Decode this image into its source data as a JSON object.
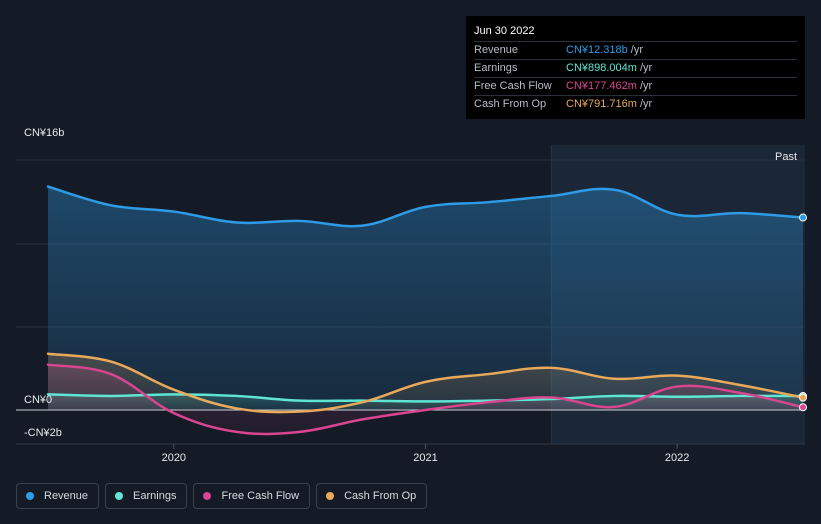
{
  "chart_data": {
    "type": "area",
    "y_axis_labels": [
      "CN¥16b",
      "CN¥0",
      "-CN¥2b"
    ],
    "ylim": [
      -2,
      16
    ],
    "x_ticks": [
      {
        "label": "2020",
        "x": 2020.0
      },
      {
        "label": "2021",
        "x": 2021.0
      },
      {
        "label": "2022",
        "x": 2022.0
      }
    ],
    "xlim": [
      2019.5,
      2022.5
    ],
    "past_label": "Past",
    "past_start": 2021.5,
    "series": [
      {
        "name": "Revenue",
        "color": "#2e9be6",
        "x": [
          2019.5,
          2019.75,
          2020.0,
          2020.25,
          2020.5,
          2020.75,
          2021.0,
          2021.25,
          2021.5,
          2021.75,
          2022.0,
          2022.25,
          2022.5
        ],
        "values": [
          14.3,
          13.1,
          12.7,
          12.0,
          12.1,
          11.8,
          13.0,
          13.3,
          13.7,
          14.1,
          12.5,
          12.6,
          12.318
        ]
      },
      {
        "name": "Earnings",
        "color": "#5ee6d2",
        "x": [
          2019.5,
          2019.75,
          2020.0,
          2020.25,
          2020.5,
          2020.75,
          2021.0,
          2021.25,
          2021.5,
          2021.75,
          2022.0,
          2022.25,
          2022.5
        ],
        "values": [
          1.0,
          0.9,
          1.0,
          0.9,
          0.6,
          0.6,
          0.55,
          0.6,
          0.7,
          0.9,
          0.85,
          0.9,
          0.898
        ]
      },
      {
        "name": "Free Cash Flow",
        "color": "#d9458f",
        "x": [
          2019.5,
          2019.75,
          2020.0,
          2020.25,
          2020.5,
          2020.75,
          2021.0,
          2021.25,
          2021.5,
          2021.75,
          2022.0,
          2022.25,
          2022.5
        ],
        "values": [
          2.9,
          2.3,
          -0.2,
          -1.4,
          -1.4,
          -0.6,
          0.0,
          0.5,
          0.8,
          0.2,
          1.5,
          1.1,
          0.177
        ]
      },
      {
        "name": "Cash From Op",
        "color": "#e8a95a",
        "x": [
          2019.5,
          2019.75,
          2020.0,
          2020.25,
          2020.5,
          2020.75,
          2021.0,
          2021.25,
          2021.5,
          2021.75,
          2022.0,
          2022.25,
          2022.5
        ],
        "values": [
          3.6,
          3.1,
          1.3,
          0.1,
          -0.1,
          0.5,
          1.8,
          2.3,
          2.7,
          2.0,
          2.2,
          1.6,
          0.792
        ]
      }
    ]
  },
  "tooltip": {
    "date": "Jun 30 2022",
    "rows": [
      {
        "label": "Revenue",
        "value": "CN¥12.318b",
        "unit": "/yr",
        "color": "#2e9be6"
      },
      {
        "label": "Earnings",
        "value": "CN¥898.004m",
        "unit": "/yr",
        "color": "#5ee6d2"
      },
      {
        "label": "Free Cash Flow",
        "value": "CN¥177.462m",
        "unit": "/yr",
        "color": "#d9458f"
      },
      {
        "label": "Cash From Op",
        "value": "CN¥791.716m",
        "unit": "/yr",
        "color": "#e8a95a"
      }
    ]
  },
  "legend": [
    {
      "label": "Revenue",
      "color": "#2e9be6"
    },
    {
      "label": "Earnings",
      "color": "#5ee6d2"
    },
    {
      "label": "Free Cash Flow",
      "color": "#d9458f"
    },
    {
      "label": "Cash From Op",
      "color": "#e8a95a"
    }
  ]
}
